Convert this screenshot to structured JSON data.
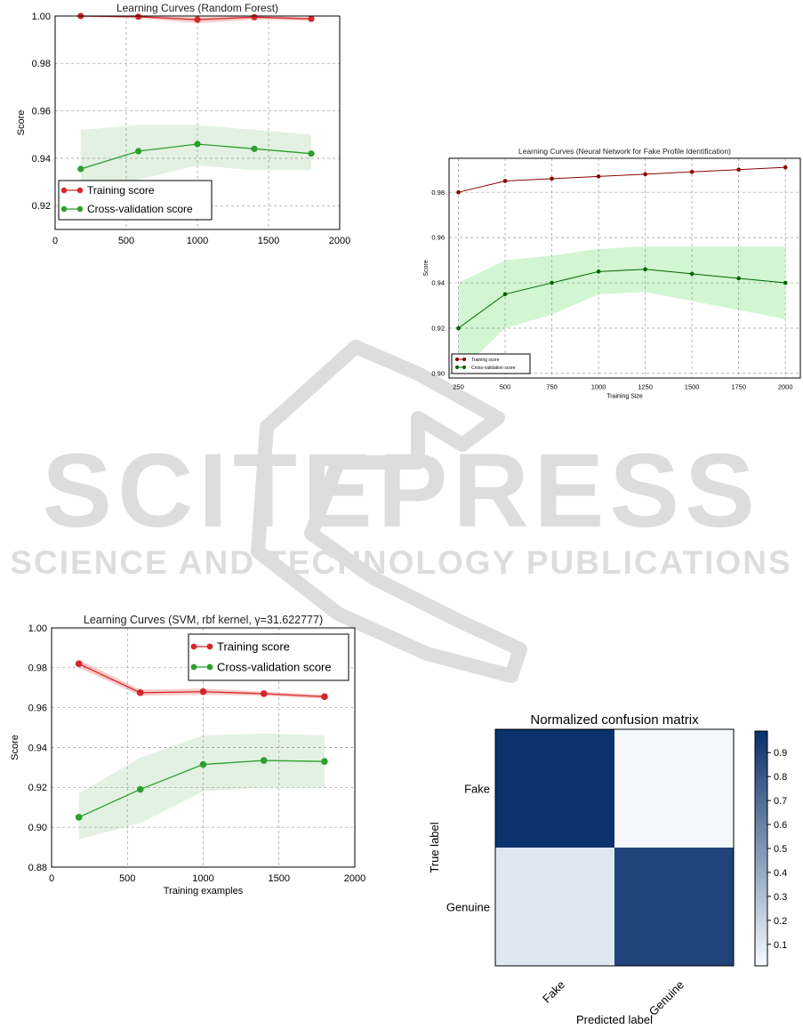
{
  "watermark": {
    "title": "SCITEPRESS",
    "subtitle": "SCIENCE AND TECHNOLOGY PUBLICATIONS"
  },
  "chart_data": [
    {
      "type": "line",
      "title": "Learning Curves (Random Forest)",
      "xlabel": "",
      "ylabel": "Score",
      "xlim": [
        0,
        2000
      ],
      "ylim": [
        0.91,
        1.0
      ],
      "xticks": [
        "0",
        "500",
        "1000",
        "1500",
        "2000"
      ],
      "yticks": [
        "0.92",
        "0.94",
        "0.96",
        "0.98",
        "1.00"
      ],
      "grid": true,
      "legend_position": "bottom-left",
      "x": [
        180,
        585,
        1000,
        1400,
        1800
      ],
      "series": [
        {
          "name": "Training score",
          "color": "#d62728",
          "band_color": "#f4a6a6",
          "values": [
            1.0,
            0.9997,
            0.9985,
            0.9995,
            0.9988
          ],
          "lower": [
            0.9995,
            0.999,
            0.997,
            0.9985,
            0.998
          ],
          "upper": [
            1.0,
            1.0,
            0.9995,
            1.0,
            0.9995
          ]
        },
        {
          "name": "Cross-validation score",
          "color": "#2ca02c",
          "band_color": "#cfe8cf",
          "values": [
            0.9355,
            0.943,
            0.946,
            0.944,
            0.942
          ],
          "lower": [
            0.919,
            0.931,
            0.937,
            0.935,
            0.935
          ],
          "upper": [
            0.952,
            0.954,
            0.954,
            0.952,
            0.95
          ]
        }
      ]
    },
    {
      "type": "line",
      "title": "Learning Curves (Neural Network for Fake Profile Identification)",
      "xlabel": "Training Size",
      "ylabel": "Score",
      "xlim": [
        200,
        2080
      ],
      "ylim": [
        0.898,
        0.995
      ],
      "xticks": [
        "250",
        "500",
        "750",
        "1000",
        "1250",
        "1500",
        "1750",
        "2000"
      ],
      "yticks": [
        "0.90",
        "0.92",
        "0.94",
        "0.96",
        "0.98"
      ],
      "grid": true,
      "legend_position": "bottom-left",
      "x": [
        250,
        500,
        750,
        1000,
        1250,
        1500,
        1750,
        2000
      ],
      "series": [
        {
          "name": "Training score",
          "color": "#8b0000",
          "band_color": "#f4a6a6",
          "values": [
            0.98,
            0.985,
            0.986,
            0.987,
            0.988,
            0.989,
            0.99,
            0.991
          ],
          "lower": [
            0.98,
            0.985,
            0.986,
            0.987,
            0.988,
            0.989,
            0.99,
            0.991
          ],
          "upper": [
            0.98,
            0.985,
            0.986,
            0.987,
            0.988,
            0.989,
            0.99,
            0.991
          ]
        },
        {
          "name": "Cross-validation score",
          "color": "#006400",
          "band_color": "#b2f0b2",
          "values": [
            0.92,
            0.935,
            0.94,
            0.945,
            0.946,
            0.944,
            0.942,
            0.94
          ],
          "lower": [
            0.9,
            0.92,
            0.926,
            0.935,
            0.936,
            0.932,
            0.928,
            0.924
          ],
          "upper": [
            0.94,
            0.95,
            0.952,
            0.955,
            0.956,
            0.956,
            0.956,
            0.956
          ]
        }
      ]
    },
    {
      "type": "line",
      "title": "Learning Curves (SVM, rbf kernel, γ=31.622777)",
      "xlabel": "Training examples",
      "ylabel": "Score",
      "xlim": [
        0,
        2000
      ],
      "ylim": [
        0.88,
        1.0
      ],
      "xticks": [
        "0",
        "500",
        "1000",
        "1500",
        "2000"
      ],
      "yticks": [
        "0.88",
        "0.90",
        "0.92",
        "0.94",
        "0.96",
        "0.98",
        "1.00"
      ],
      "grid": true,
      "legend_position": "top-right",
      "x": [
        180,
        585,
        1000,
        1400,
        1800
      ],
      "series": [
        {
          "name": "Training score",
          "color": "#d62728",
          "band_color": "#f4a6a6",
          "values": [
            0.982,
            0.9675,
            0.968,
            0.967,
            0.9655
          ],
          "lower": [
            0.98,
            0.966,
            0.9665,
            0.966,
            0.9645
          ],
          "upper": [
            0.984,
            0.969,
            0.9695,
            0.968,
            0.9665
          ]
        },
        {
          "name": "Cross-validation score",
          "color": "#2ca02c",
          "band_color": "#cfe8cf",
          "values": [
            0.905,
            0.919,
            0.9315,
            0.9335,
            0.933
          ],
          "lower": [
            0.894,
            0.902,
            0.918,
            0.92,
            0.92
          ],
          "upper": [
            0.917,
            0.935,
            0.946,
            0.947,
            0.946
          ]
        }
      ]
    },
    {
      "type": "heatmap",
      "title": "Normalized confusion matrix",
      "xlabel": "Predicted label",
      "ylabel": "True label",
      "x_categories": [
        "Fake",
        "Genuine"
      ],
      "y_categories": [
        "Fake",
        "Genuine"
      ],
      "values": [
        [
          0.99,
          0.01
        ],
        [
          0.1,
          0.9
        ]
      ],
      "colorbar_ticks": [
        "0.1",
        "0.2",
        "0.3",
        "0.4",
        "0.5",
        "0.6",
        "0.7",
        "0.8",
        "0.9"
      ],
      "colorbar_range": [
        0.0,
        1.0
      ],
      "colormap": "Blues"
    }
  ]
}
